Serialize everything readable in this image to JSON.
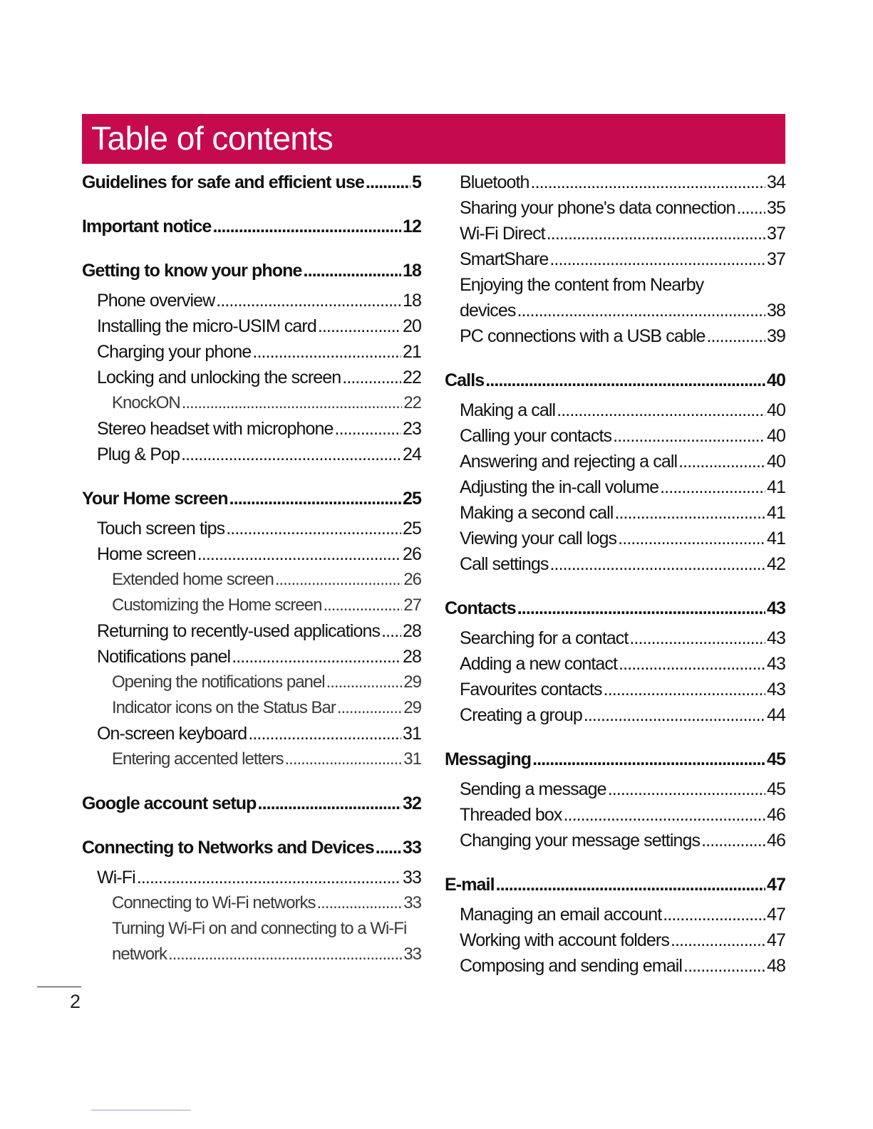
{
  "title": "Table of contents",
  "page_number": "2",
  "colors": {
    "banner": "#c50b4e",
    "banner_text": "#ffffff",
    "text": "#111111"
  },
  "left_column": [
    {
      "level": 0,
      "label": "Guidelines for safe and efficient use",
      "page": "5"
    },
    {
      "level": 0,
      "label": "Important notice",
      "page": "12"
    },
    {
      "level": 0,
      "label": "Getting to know your phone",
      "page": "18"
    },
    {
      "level": 1,
      "label": "Phone overview",
      "page": "18"
    },
    {
      "level": 1,
      "label": "Installing the micro-USIM card",
      "page": "20"
    },
    {
      "level": 1,
      "label": "Charging your phone",
      "page": "21"
    },
    {
      "level": 1,
      "label": "Locking and unlocking the screen",
      "page": "22"
    },
    {
      "level": 2,
      "label": "KnockON",
      "page": "22"
    },
    {
      "level": 1,
      "label": "Stereo headset with microphone",
      "page": "23"
    },
    {
      "level": 1,
      "label": "Plug & Pop",
      "page": "24"
    },
    {
      "level": 0,
      "label": "Your Home screen",
      "page": "25"
    },
    {
      "level": 1,
      "label": "Touch screen tips",
      "page": "25"
    },
    {
      "level": 1,
      "label": "Home screen",
      "page": "26"
    },
    {
      "level": 2,
      "label": "Extended home screen",
      "page": "26"
    },
    {
      "level": 2,
      "label": "Customizing the Home screen",
      "page": "27"
    },
    {
      "level": 1,
      "label": "Returning to recently-used applications",
      "page": "28"
    },
    {
      "level": 1,
      "label": "Notifications panel",
      "page": "28"
    },
    {
      "level": 2,
      "label": "Opening the notifications panel",
      "page": "29"
    },
    {
      "level": 2,
      "label": "Indicator icons on the Status Bar",
      "page": "29"
    },
    {
      "level": 1,
      "label": "On-screen keyboard",
      "page": "31"
    },
    {
      "level": 2,
      "label": "Entering accented letters",
      "page": "31"
    },
    {
      "level": 0,
      "label": "Google account setup",
      "page": "32"
    },
    {
      "level": 0,
      "label": "Connecting to Networks and Devices",
      "page": "33"
    },
    {
      "level": 1,
      "label": "Wi-Fi",
      "page": "33"
    },
    {
      "level": 2,
      "label": "Connecting to Wi-Fi networks",
      "page": "33"
    },
    {
      "level": 2,
      "label_line1": "Turning Wi-Fi on and connecting to a Wi-Fi",
      "label": "network",
      "page": "33"
    }
  ],
  "right_column": [
    {
      "level": 1,
      "label": "Bluetooth",
      "page": "34"
    },
    {
      "level": 1,
      "label": "Sharing your phone's data connection",
      "page": "35"
    },
    {
      "level": 1,
      "label": "Wi-Fi Direct",
      "page": "37"
    },
    {
      "level": 1,
      "label": "SmartShare",
      "page": "37"
    },
    {
      "level": 1,
      "label_line1": "Enjoying the content from Nearby",
      "label": "devices",
      "page": "38"
    },
    {
      "level": 1,
      "label": "PC connections with a USB cable",
      "page": "39"
    },
    {
      "level": 0,
      "label": "Calls",
      "page": "40"
    },
    {
      "level": 1,
      "label": "Making a call",
      "page": "40"
    },
    {
      "level": 1,
      "label": "Calling your contacts",
      "page": "40"
    },
    {
      "level": 1,
      "label": "Answering and rejecting a call",
      "page": "40"
    },
    {
      "level": 1,
      "label": "Adjusting the in-call volume",
      "page": "41"
    },
    {
      "level": 1,
      "label": "Making a second call",
      "page": "41"
    },
    {
      "level": 1,
      "label": "Viewing your call logs",
      "page": "41"
    },
    {
      "level": 1,
      "label": "Call settings",
      "page": "42"
    },
    {
      "level": 0,
      "label": "Contacts",
      "page": "43"
    },
    {
      "level": 1,
      "label": "Searching for a contact",
      "page": "43"
    },
    {
      "level": 1,
      "label": "Adding a new contact",
      "page": "43"
    },
    {
      "level": 1,
      "label": "Favourites contacts",
      "page": "43"
    },
    {
      "level": 1,
      "label": "Creating a group",
      "page": "44"
    },
    {
      "level": 0,
      "label": "Messaging",
      "page": "45"
    },
    {
      "level": 1,
      "label": "Sending a message",
      "page": "45"
    },
    {
      "level": 1,
      "label": "Threaded box",
      "page": "46"
    },
    {
      "level": 1,
      "label": "Changing your message settings",
      "page": "46"
    },
    {
      "level": 0,
      "label": "E-mail",
      "page": "47"
    },
    {
      "level": 1,
      "label": "Managing an email account",
      "page": "47"
    },
    {
      "level": 1,
      "label": "Working with account folders",
      "page": "47"
    },
    {
      "level": 1,
      "label": "Composing and sending email",
      "page": "48"
    }
  ]
}
